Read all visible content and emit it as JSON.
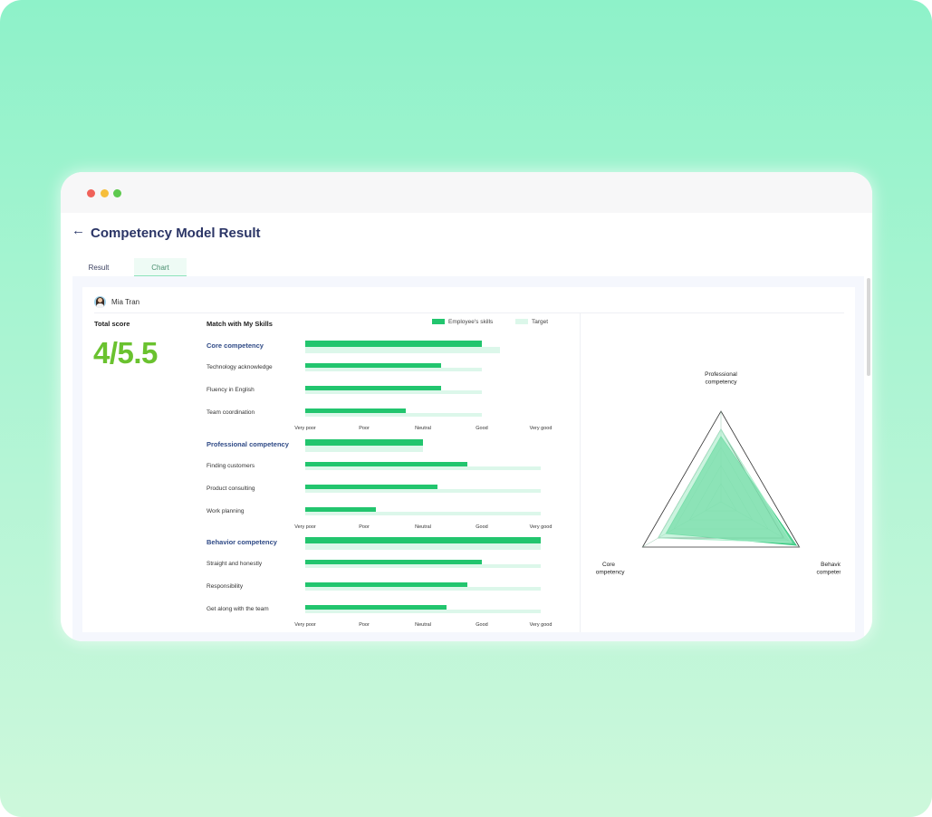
{
  "window": {
    "title": "Competency Model Result",
    "back_icon": "arrow-left-icon"
  },
  "tabs": [
    {
      "label": "Result",
      "active": false
    },
    {
      "label": "Chart",
      "active": true
    }
  ],
  "user": {
    "name": "Mia Tran",
    "avatar_icon": "avatar-icon"
  },
  "summary": {
    "total_label": "Total score",
    "total_value": "4/5.5",
    "value_color": "#6ac22f"
  },
  "skills": {
    "title": "Match with My Skills",
    "legend": {
      "employee": "Employee's skills",
      "target": "Target"
    },
    "colors": {
      "employee": "#22c56e",
      "target": "#dcf7ea"
    },
    "scale_labels": [
      "Very poor",
      "Poor",
      "Neutral",
      "Good",
      "Very good"
    ]
  },
  "chart_data": [
    {
      "type": "bar",
      "orientation": "horizontal",
      "title": "Core competency",
      "categories": [
        "Core competency",
        "Technology acknowledge",
        "Fluency in English",
        "Team coordination"
      ],
      "series": [
        {
          "name": "Employee's skills",
          "values": [
            3.0,
            2.3,
            2.3,
            1.7
          ]
        },
        {
          "name": "Target",
          "values": [
            3.3,
            3.0,
            3.0,
            3.0
          ]
        }
      ],
      "xlim": [
        0,
        4
      ],
      "tick_labels": [
        "Very poor",
        "Poor",
        "Neutral",
        "Good",
        "Very good"
      ]
    },
    {
      "type": "bar",
      "orientation": "horizontal",
      "title": "Professional competency",
      "categories": [
        "Professional competency",
        "Finding customers",
        "Product consulting",
        "Work planning"
      ],
      "series": [
        {
          "name": "Employee's skills",
          "values": [
            2.0,
            2.75,
            2.25,
            1.2
          ]
        },
        {
          "name": "Target",
          "values": [
            2.0,
            4.0,
            4.0,
            4.0
          ]
        }
      ],
      "xlim": [
        0,
        4
      ],
      "tick_labels": [
        "Very poor",
        "Poor",
        "Neutral",
        "Good",
        "Very good"
      ]
    },
    {
      "type": "bar",
      "orientation": "horizontal",
      "title": "Behavior competency",
      "categories": [
        "Behavior competency",
        "Straight and honestly",
        "Responsibility",
        "Get along with the team"
      ],
      "series": [
        {
          "name": "Employee's skills",
          "values": [
            4.0,
            3.0,
            2.75,
            2.4
          ]
        },
        {
          "name": "Target",
          "values": [
            4.0,
            4.0,
            4.0,
            4.0
          ]
        }
      ],
      "xlim": [
        0,
        4
      ],
      "tick_labels": [
        "Very poor",
        "Poor",
        "Neutral",
        "Good",
        "Very good"
      ]
    },
    {
      "type": "radar",
      "axes": [
        "Professional competency",
        "Behavior competency",
        "Core competency"
      ],
      "axis_labels": [
        [
          "Professional",
          "competency"
        ],
        [
          "Behavior",
          "competency"
        ],
        [
          "Core",
          "competency"
        ]
      ],
      "max": 5,
      "series": [
        {
          "values": [
            3.6,
            4.8,
            3.5
          ],
          "color": "#2dc77a"
        },
        {
          "values": [
            4.0,
            4.5,
            4.0
          ],
          "color": "#a9ecca"
        }
      ]
    }
  ]
}
